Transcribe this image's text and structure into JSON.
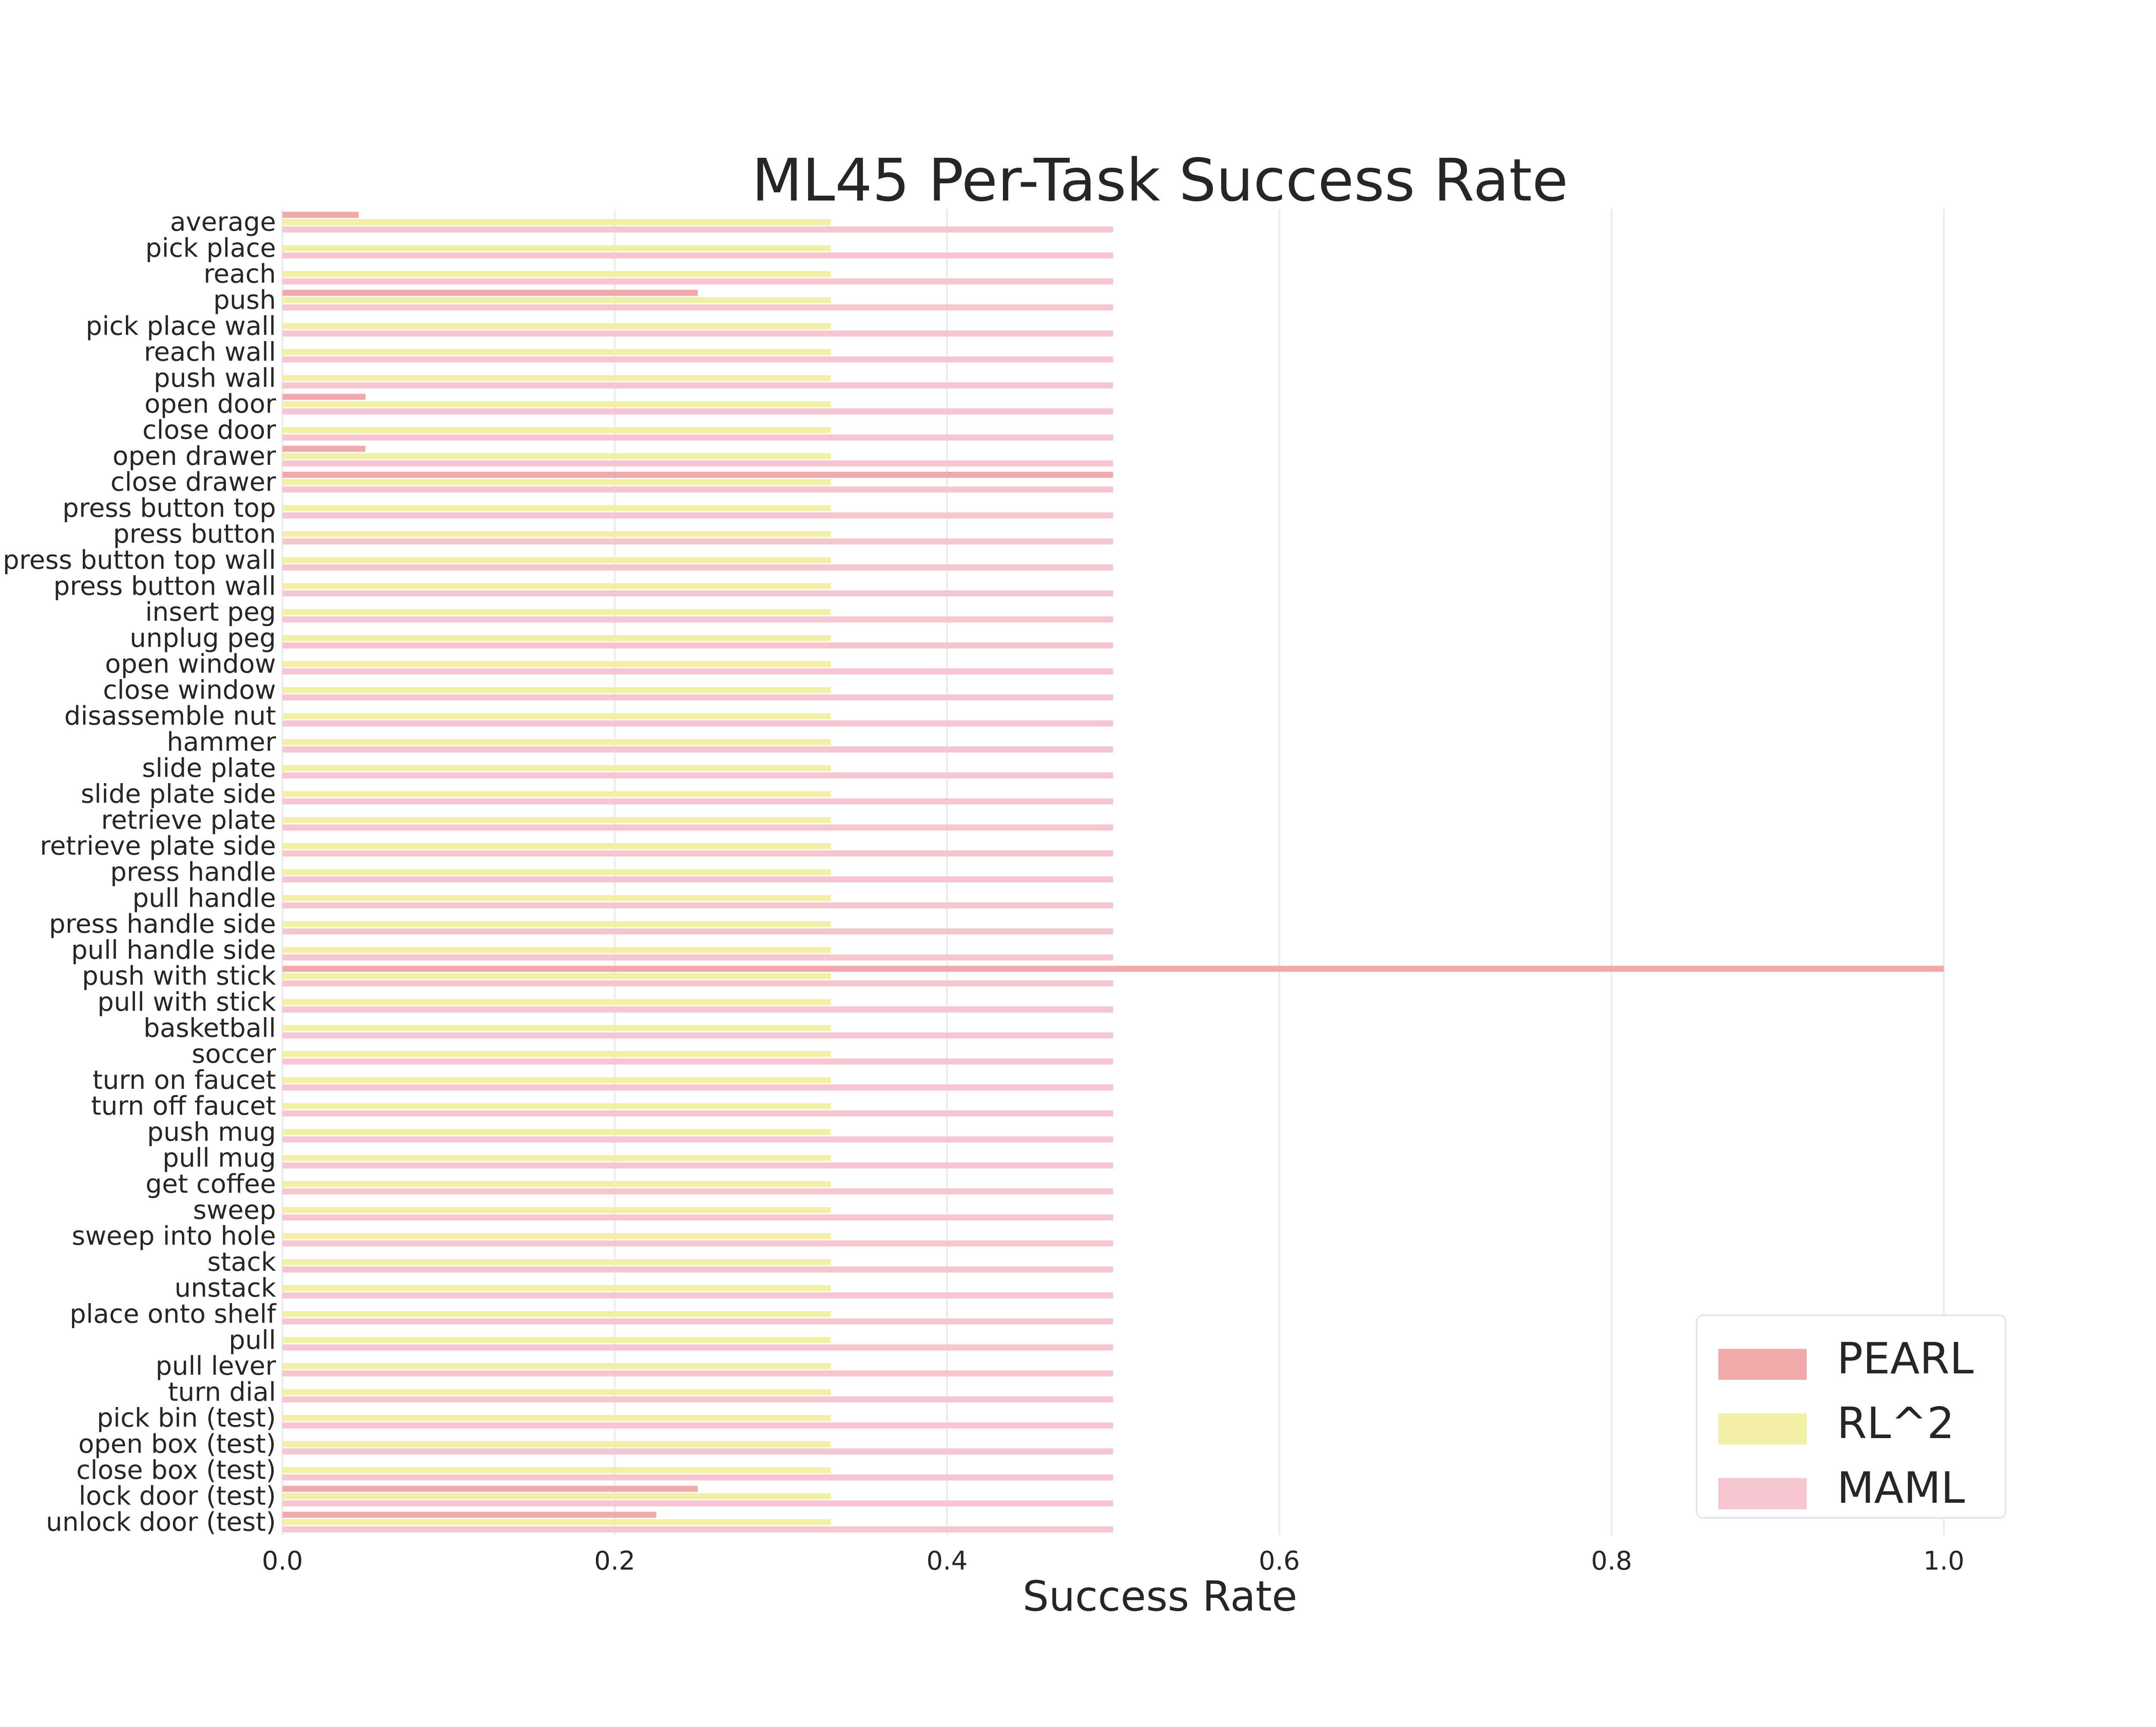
{
  "chart_data": {
    "type": "bar",
    "orientation": "horizontal",
    "title": "ML45 Per-Task Success Rate",
    "xlabel": "Success Rate",
    "ylabel": "",
    "xlim": [
      0.0,
      1.0
    ],
    "xticks": [
      "0.0",
      "0.2",
      "0.4",
      "0.6",
      "0.8",
      "1.0"
    ],
    "grid": "vertical",
    "legend_position": "bottom-right",
    "categories": [
      "average",
      "pick place",
      "reach",
      "push",
      "pick place wall",
      "reach wall",
      "push wall",
      "open door",
      "close door",
      "open drawer",
      "close drawer",
      "press button top",
      "press button",
      "press button top wall",
      "press button wall",
      "insert peg",
      "unplug peg",
      "open window",
      "close window",
      "disassemble nut",
      "hammer",
      "slide plate",
      "slide plate side",
      "retrieve plate",
      "retrieve plate side",
      "press handle",
      "pull handle",
      "press handle side",
      "pull handle side",
      "push with stick",
      "pull with stick",
      "basketball",
      "soccer",
      "turn on faucet",
      "turn off faucet",
      "push mug",
      "pull mug",
      "get coffee",
      "sweep",
      "sweep into hole",
      "stack",
      "unstack",
      "place onto shelf",
      "pull",
      "pull lever",
      "turn dial",
      "pick bin (test)",
      "open box (test)",
      "close box (test)",
      "lock door (test)",
      "unlock door (test)"
    ],
    "series": [
      {
        "name": "PEARL",
        "color": "#f1a9a9",
        "values": [
          0.046,
          0,
          0,
          0.25,
          0,
          0,
          0,
          0.05,
          0,
          0.05,
          0.5,
          0,
          0,
          0,
          0,
          0,
          0,
          0,
          0,
          0,
          0,
          0,
          0,
          0,
          0,
          0,
          0,
          0,
          0,
          1.0,
          0,
          0,
          0,
          0,
          0,
          0,
          0,
          0,
          0,
          0,
          0,
          0,
          0,
          0,
          0,
          0,
          0,
          0,
          0,
          0.25,
          0.225
        ]
      },
      {
        "name": "RL^2",
        "color": "#f2f0a6",
        "values": [
          0.33,
          0.33,
          0.33,
          0.33,
          0.33,
          0.33,
          0.33,
          0.33,
          0.33,
          0.33,
          0.33,
          0.33,
          0.33,
          0.33,
          0.33,
          0.33,
          0.33,
          0.33,
          0.33,
          0.33,
          0.33,
          0.33,
          0.33,
          0.33,
          0.33,
          0.33,
          0.33,
          0.33,
          0.33,
          0.33,
          0.33,
          0.33,
          0.33,
          0.33,
          0.33,
          0.33,
          0.33,
          0.33,
          0.33,
          0.33,
          0.33,
          0.33,
          0.33,
          0.33,
          0.33,
          0.33,
          0.33,
          0.33,
          0.33,
          0.33,
          0.33
        ]
      },
      {
        "name": "MAML",
        "color": "#f7c5d0",
        "values": [
          0.5,
          0.5,
          0.5,
          0.5,
          0.5,
          0.5,
          0.5,
          0.5,
          0.5,
          0.5,
          0.5,
          0.5,
          0.5,
          0.5,
          0.5,
          0.5,
          0.5,
          0.5,
          0.5,
          0.5,
          0.5,
          0.5,
          0.5,
          0.5,
          0.5,
          0.5,
          0.5,
          0.5,
          0.5,
          0.5,
          0.5,
          0.5,
          0.5,
          0.5,
          0.5,
          0.5,
          0.5,
          0.5,
          0.5,
          0.5,
          0.5,
          0.5,
          0.5,
          0.5,
          0.5,
          0.5,
          0.5,
          0.5,
          0.5,
          0.5,
          0.5
        ]
      }
    ]
  }
}
